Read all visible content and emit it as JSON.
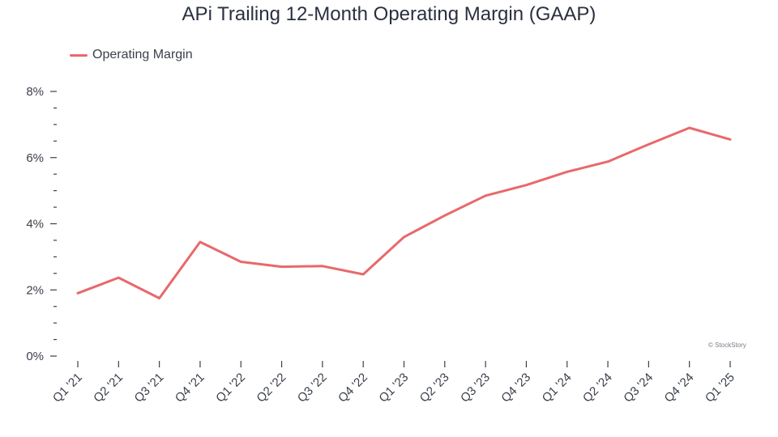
{
  "chart_data": {
    "type": "line",
    "title": "APi Trailing 12-Month Operating Margin (GAAP)",
    "xlabel": "",
    "ylabel": "",
    "categories": [
      "Q1 '21",
      "Q2 '21",
      "Q3 '21",
      "Q4 '21",
      "Q1 '22",
      "Q2 '22",
      "Q3 '22",
      "Q4 '22",
      "Q1 '23",
      "Q2 '23",
      "Q3 '23",
      "Q4 '23",
      "Q1 '24",
      "Q2 '24",
      "Q3 '24",
      "Q4 '24",
      "Q1 '25"
    ],
    "series": [
      {
        "name": "Operating Margin",
        "color": "#e8696b",
        "values": [
          1.9,
          2.37,
          1.75,
          3.45,
          2.85,
          2.7,
          2.72,
          2.47,
          3.6,
          4.25,
          4.85,
          5.17,
          5.57,
          5.88,
          6.4,
          6.9,
          6.55
        ]
      }
    ],
    "yticks": [
      "0%",
      "2%",
      "4%",
      "6%",
      "8%"
    ],
    "ylim": [
      0,
      8
    ],
    "y_tick_values": [
      0,
      2,
      4,
      6,
      8
    ],
    "y_minor_step": 0.5,
    "grid": false,
    "legend_position": "top-left"
  },
  "watermark": "© StockStory"
}
